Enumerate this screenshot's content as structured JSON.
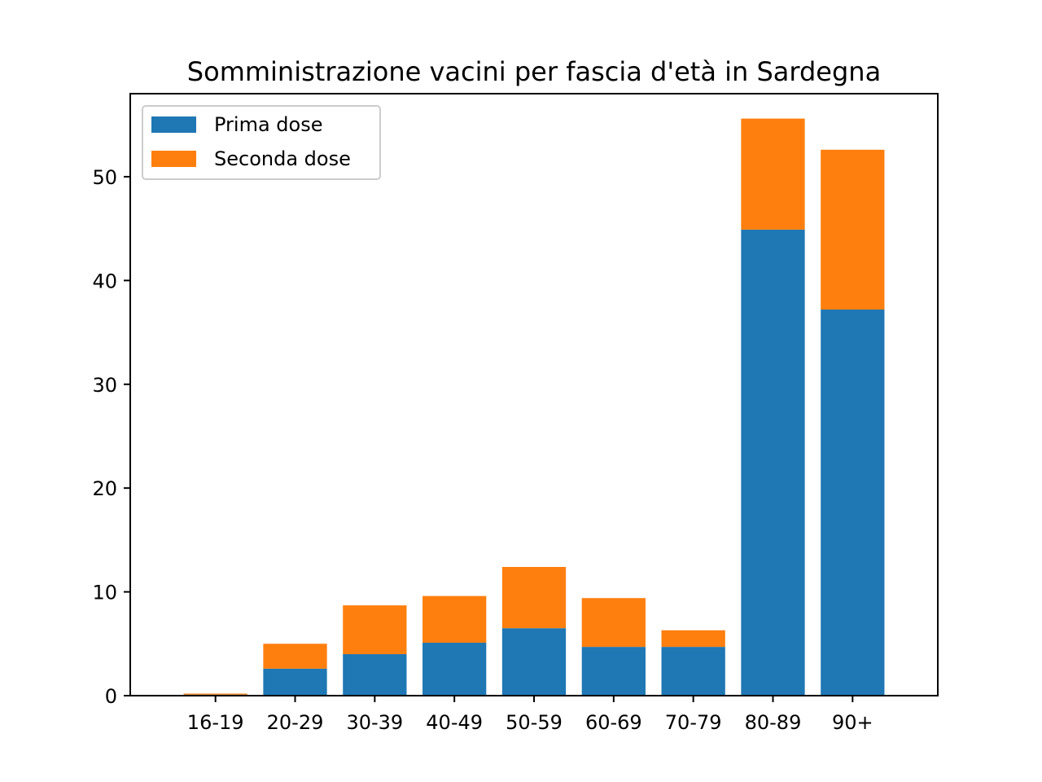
{
  "chart_data": {
    "type": "bar",
    "stacked": true,
    "title": "Somministrazione vacini per fascia d'età in Sardegna",
    "xlabel": "",
    "ylabel": "",
    "categories": [
      "16-19",
      "20-29",
      "30-39",
      "40-49",
      "50-59",
      "60-69",
      "70-79",
      "80-89",
      "90+"
    ],
    "series": [
      {
        "name": "Prima dose",
        "color": "#1f77b4",
        "values": [
          0.1,
          2.6,
          4.0,
          5.1,
          6.5,
          4.7,
          4.7,
          44.9,
          37.2
        ]
      },
      {
        "name": "Seconda dose",
        "color": "#ff7f0e",
        "values": [
          0.1,
          2.4,
          4.7,
          4.5,
          5.9,
          4.7,
          1.6,
          10.7,
          15.4
        ]
      }
    ],
    "ylim": [
      0,
      58
    ],
    "yticks": [
      0,
      10,
      20,
      30,
      40,
      50
    ],
    "grid": false,
    "legend_position": "top-left"
  }
}
